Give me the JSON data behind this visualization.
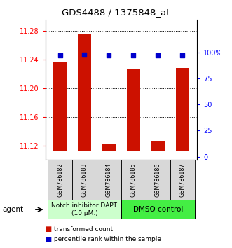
{
  "title": "GDS4488 / 1375848_at",
  "samples": [
    "GSM786182",
    "GSM786183",
    "GSM786184",
    "GSM786185",
    "GSM786186",
    "GSM786187"
  ],
  "bar_values": [
    11.237,
    11.275,
    11.122,
    11.227,
    11.127,
    11.228
  ],
  "bar_base": 11.112,
  "percentile_values": [
    97,
    98,
    97,
    97,
    97,
    97
  ],
  "ylim_left": [
    11.1,
    11.295
  ],
  "ylim_right": [
    -3.125,
    131.25
  ],
  "yticks_left": [
    11.12,
    11.16,
    11.2,
    11.24,
    11.28
  ],
  "yticks_right": [
    0,
    25,
    50,
    75,
    100
  ],
  "bar_color": "#cc1100",
  "dot_color": "#0000cc",
  "group1_label": "Notch inhibitor DAPT\n(10 μM.)",
  "group2_label": "DMSO control",
  "group1_color": "#ccffcc",
  "group2_color": "#44ee44",
  "agent_label": "agent",
  "legend_bar_label": " transformed count",
  "legend_dot_label": " percentile rank within the sample",
  "n_group1": 3,
  "n_group2": 3
}
